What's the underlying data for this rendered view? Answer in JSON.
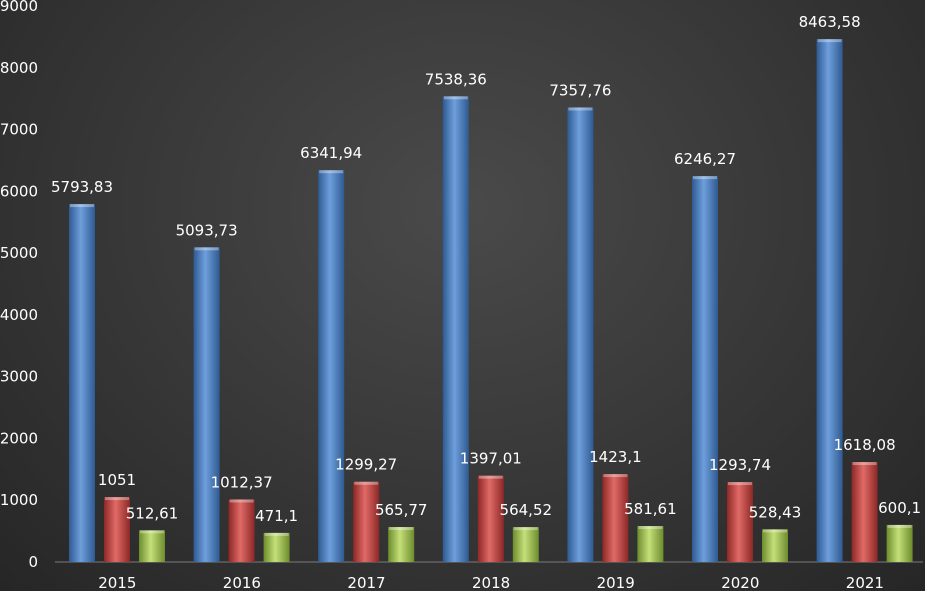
{
  "chart_data": {
    "type": "bar",
    "categories": [
      "2015",
      "2016",
      "2017",
      "2018",
      "2019",
      "2020",
      "2021"
    ],
    "series": [
      {
        "values": [
          5793.83,
          5093.73,
          6341.94,
          7538.36,
          7357.76,
          6246.27,
          8463.58
        ],
        "labels": [
          "5793,83",
          "5093,73",
          "6341,94",
          "7538,36",
          "7357,76",
          "6246,27",
          "8463,58"
        ],
        "color": "#4f81bd"
      },
      {
        "values": [
          1051,
          1012.37,
          1299.27,
          1397.01,
          1423.1,
          1293.74,
          1618.08
        ],
        "labels": [
          "1051",
          "1012,37",
          "1299,27",
          "1397,01",
          "1423,1",
          "1293,74",
          "1618,08"
        ],
        "color": "#c0504d"
      },
      {
        "values": [
          512.61,
          471.1,
          565.77,
          564.52,
          581.61,
          528.43,
          600.1
        ],
        "labels": [
          "512,61",
          "471,1",
          "565,77",
          "564,52",
          "581,61",
          "528,43",
          "600,1"
        ],
        "color": "#9bbb59"
      }
    ],
    "ylim": [
      0,
      9000
    ],
    "yticks": [
      "0",
      "1000",
      "2000",
      "3000",
      "4000",
      "5000",
      "6000",
      "7000",
      "8000",
      "9000"
    ],
    "grid": false,
    "title": "",
    "xlabel": "",
    "ylabel": ""
  }
}
